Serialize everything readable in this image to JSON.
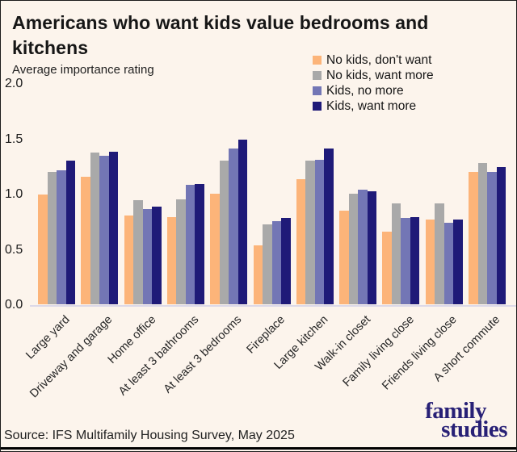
{
  "header": {
    "title": "Americans who want kids value bedrooms and kitchens",
    "subtitle": "Average importance rating"
  },
  "chart_data": {
    "type": "bar",
    "title": "Americans who want kids value bedrooms and kitchens",
    "ylabel": "Average importance rating",
    "ylim": [
      0,
      2.0
    ],
    "yticks": [
      "2.0",
      "1.5",
      "1.0",
      "0.5",
      "0.0"
    ],
    "grid": false,
    "legend_position": "top-right",
    "categories": [
      "Large yard",
      "Driveway and garage",
      "Home office",
      "At least 3 bathrooms",
      "At least 3 bedrooms",
      "Fireplace",
      "Large kitchen",
      "Walk-in closet",
      "Family living close",
      "Friends living close",
      "A short commute"
    ],
    "series": [
      {
        "name": "No kids, don't want",
        "color": "#FCB479",
        "values": [
          0.99,
          1.15,
          0.8,
          0.79,
          1.0,
          0.53,
          1.13,
          0.85,
          0.66,
          0.77,
          1.2
        ]
      },
      {
        "name": "No kids, want more",
        "color": "#A9A9A9",
        "values": [
          1.2,
          1.37,
          0.94,
          0.95,
          1.3,
          0.72,
          1.3,
          1.0,
          0.91,
          0.91,
          1.28
        ]
      },
      {
        "name": "Kids, no more",
        "color": "#7376B5",
        "values": [
          1.21,
          1.34,
          0.86,
          1.08,
          1.41,
          0.75,
          1.31,
          1.04,
          0.78,
          0.74,
          1.2
        ]
      },
      {
        "name": "Kids, want more",
        "color": "#1F1A78",
        "values": [
          1.3,
          1.38,
          0.88,
          1.09,
          1.49,
          0.78,
          1.41,
          1.02,
          0.79,
          0.77,
          1.24
        ]
      }
    ]
  },
  "source": {
    "text": "Source: IFS Multifamily Housing Survey, May 2025"
  },
  "logo": {
    "line1": "family",
    "line2": "studies"
  },
  "colors": {
    "background": "#FCF4EC",
    "axis_line": "#DCD9E8",
    "logo_navy": "#282076",
    "text": "#161616"
  }
}
